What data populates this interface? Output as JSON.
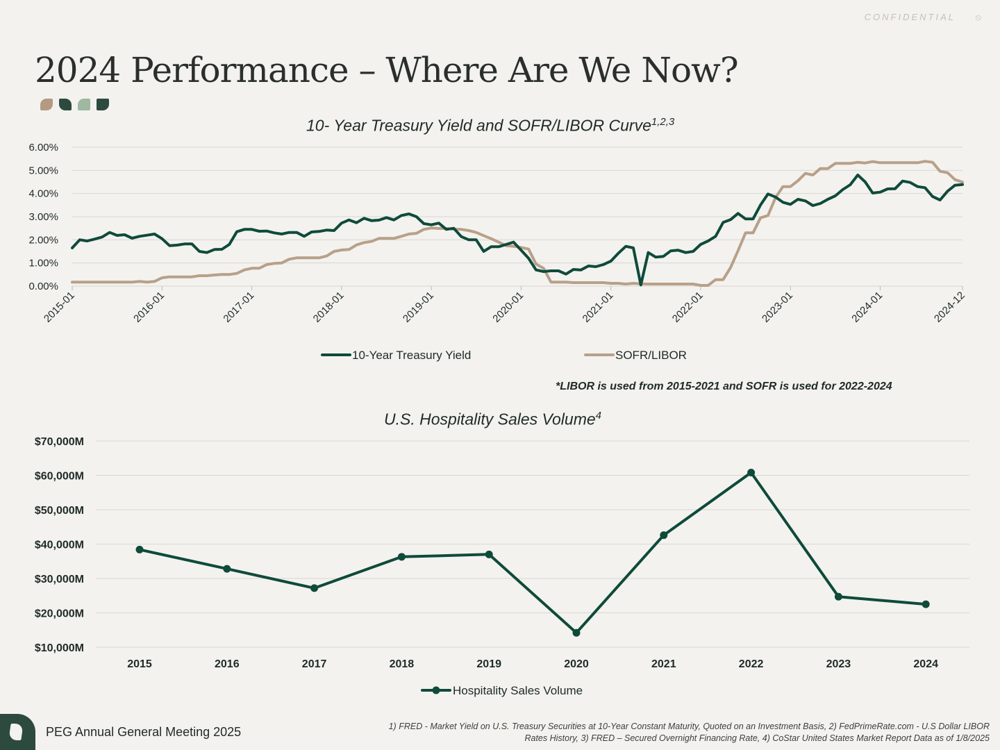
{
  "header": {
    "confidential": "CONFIDENTIAL",
    "title": "2024 Performance – Where Are We Now?",
    "swatch_colors": [
      "#b49a80",
      "#2d4a3e",
      "#9fb8a0",
      "#2d4a3e"
    ]
  },
  "colors": {
    "treasury": "#0f4a3a",
    "sofr": "#b8a088",
    "grid": "#d9d7d2",
    "background": "#f3f2ef"
  },
  "chart_data": [
    {
      "type": "line",
      "title": "10- Year Treasury Yield and SOFR/LIBOR Curve",
      "title_superscript": "1,2,3",
      "x_start": "2015-01",
      "x_end": "2024-12",
      "x_tick_labels": [
        "2015-01",
        "2016-01",
        "2017-01",
        "2018-01",
        "2019-01",
        "2020-01",
        "2021-01",
        "2022-01",
        "2023-01",
        "2024-01",
        "2024-12"
      ],
      "y_tick_labels": [
        "0.00%",
        "1.00%",
        "2.00%",
        "3.00%",
        "4.00%",
        "5.00%",
        "6.00%"
      ],
      "ylim": [
        0,
        6
      ],
      "legend_position": "bottom",
      "series": [
        {
          "name": "10-Year Treasury Yield",
          "values": [
            1.65,
            2.0,
            1.95,
            2.03,
            2.12,
            2.32,
            2.19,
            2.22,
            2.07,
            2.15,
            2.2,
            2.25,
            2.05,
            1.75,
            1.77,
            1.82,
            1.82,
            1.5,
            1.45,
            1.58,
            1.59,
            1.8,
            2.35,
            2.45,
            2.45,
            2.37,
            2.38,
            2.3,
            2.25,
            2.32,
            2.32,
            2.15,
            2.34,
            2.36,
            2.42,
            2.4,
            2.72,
            2.86,
            2.74,
            2.93,
            2.83,
            2.85,
            2.96,
            2.86,
            3.05,
            3.12,
            3.0,
            2.7,
            2.65,
            2.72,
            2.45,
            2.5,
            2.14,
            2.0,
            2.0,
            1.5,
            1.7,
            1.7,
            1.8,
            1.9,
            1.55,
            1.2,
            0.7,
            0.63,
            0.66,
            0.66,
            0.52,
            0.72,
            0.7,
            0.87,
            0.84,
            0.93,
            1.08,
            1.42,
            1.72,
            1.65,
            0.05,
            1.45,
            1.25,
            1.28,
            1.52,
            1.55,
            1.45,
            1.5,
            1.8,
            1.95,
            2.15,
            2.75,
            2.87,
            3.14,
            2.9,
            2.9,
            3.5,
            3.98,
            3.85,
            3.62,
            3.53,
            3.75,
            3.68,
            3.48,
            3.57,
            3.75,
            3.9,
            4.17,
            4.38,
            4.8,
            4.5,
            4.02,
            4.06,
            4.2,
            4.21,
            4.54,
            4.48,
            4.3,
            4.25,
            3.87,
            3.72,
            4.1,
            4.36,
            4.39
          ]
        },
        {
          "name": "SOFR/LIBOR",
          "values": [
            0.17,
            0.17,
            0.17,
            0.17,
            0.17,
            0.17,
            0.17,
            0.17,
            0.17,
            0.2,
            0.17,
            0.2,
            0.36,
            0.4,
            0.4,
            0.4,
            0.4,
            0.45,
            0.45,
            0.48,
            0.5,
            0.5,
            0.55,
            0.7,
            0.77,
            0.77,
            0.93,
            0.98,
            1.0,
            1.16,
            1.22,
            1.22,
            1.22,
            1.22,
            1.3,
            1.5,
            1.56,
            1.58,
            1.78,
            1.88,
            1.93,
            2.06,
            2.06,
            2.06,
            2.15,
            2.25,
            2.28,
            2.45,
            2.51,
            2.49,
            2.49,
            2.46,
            2.45,
            2.4,
            2.32,
            2.18,
            2.05,
            1.9,
            1.75,
            1.72,
            1.67,
            1.6,
            0.95,
            0.77,
            0.17,
            0.17,
            0.17,
            0.15,
            0.15,
            0.15,
            0.15,
            0.15,
            0.12,
            0.12,
            0.09,
            0.12,
            0.1,
            0.09,
            0.09,
            0.09,
            0.09,
            0.09,
            0.09,
            0.09,
            0.03,
            0.03,
            0.28,
            0.28,
            0.8,
            1.53,
            2.3,
            2.3,
            2.95,
            3.05,
            3.82,
            4.3,
            4.3,
            4.55,
            4.87,
            4.8,
            5.08,
            5.08,
            5.3,
            5.3,
            5.3,
            5.35,
            5.32,
            5.38,
            5.33,
            5.33,
            5.33,
            5.33,
            5.33,
            5.33,
            5.39,
            5.35,
            4.96,
            4.9,
            4.6,
            4.49
          ]
        }
      ]
    },
    {
      "type": "line",
      "title": "U.S. Hospitality Sales Volume",
      "title_superscript": "4",
      "categories": [
        "2015",
        "2016",
        "2017",
        "2018",
        "2019",
        "2020",
        "2021",
        "2022",
        "2023",
        "2024"
      ],
      "y_tick_labels": [
        "$10,000M",
        "$20,000M",
        "$30,000M",
        "$40,000M",
        "$50,000M",
        "$60,000M",
        "$70,000M"
      ],
      "ylim": [
        10000,
        70000
      ],
      "legend_position": "bottom",
      "series": [
        {
          "name": "Hospitality Sales Volume",
          "values": [
            38400,
            32800,
            27200,
            36300,
            37000,
            14200,
            42600,
            60800,
            24700,
            22500
          ]
        }
      ]
    }
  ],
  "note": "*LIBOR is used from 2015-2021 and SOFR is used for 2022-2024",
  "footer": {
    "label": "PEG Annual General Meeting 2025",
    "sources": "1) FRED - Market Yield on U.S. Treasury Securities at 10-Year Constant Maturity, Quoted on an Investment Basis, 2) FedPrimeRate.com - U.S Dollar LIBOR Rates History, 3) FRED – Secured Overnight Financing Rate, 4) CoStar United States Market Report Data as of 1/8/2025"
  }
}
